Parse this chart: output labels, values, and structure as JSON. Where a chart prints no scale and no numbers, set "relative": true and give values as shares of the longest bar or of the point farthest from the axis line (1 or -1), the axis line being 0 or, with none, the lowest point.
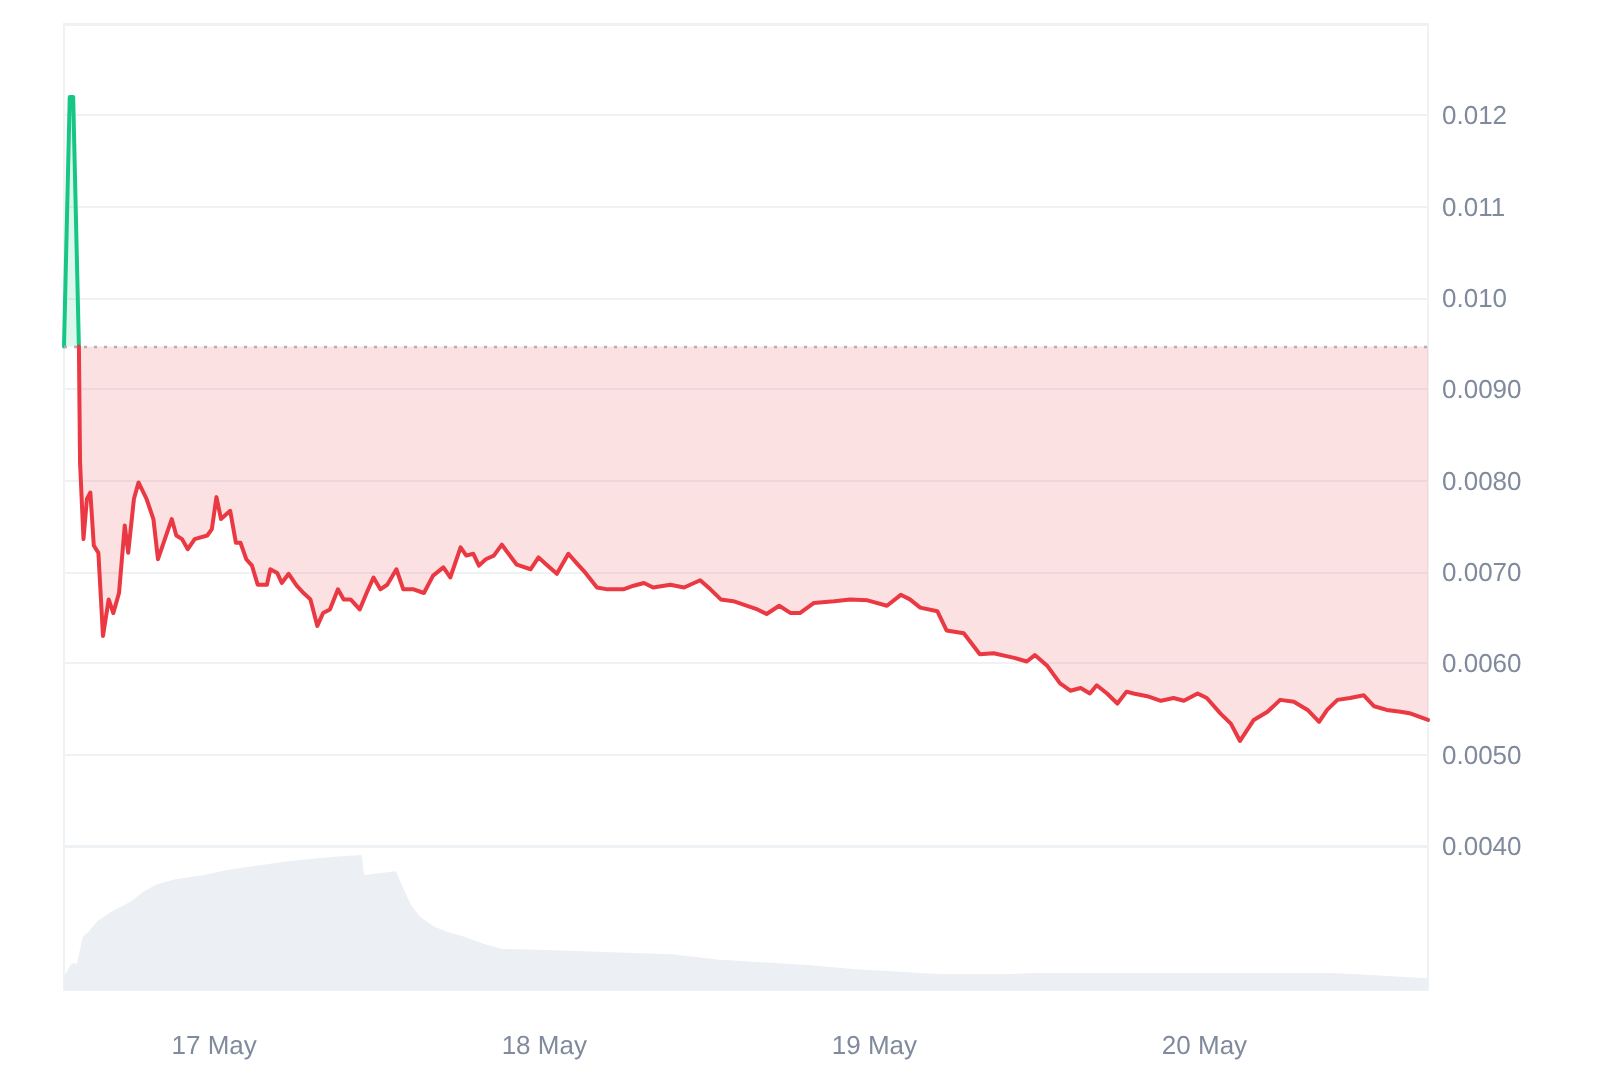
{
  "chart_data": [
    {
      "type": "line",
      "series": [
        {
          "color": "#16c784",
          "x": [
            "--05-16T13:05",
            "--05-16T13:30",
            "--05-16T13:45",
            "--05-16T14:10"
          ],
          "values": [
            0.00947,
            0.0122,
            0.0122,
            0.00947
          ],
          "lower": [
            0.00947,
            0.00947,
            0.00947,
            0.00947
          ],
          "upper": [
            0.00947,
            0.0122,
            0.0122,
            0.00947
          ]
        },
        {
          "color": "#ea3943",
          "x": [
            "--05-16T14:10",
            "--05-16T14:15",
            "--05-16T14:30",
            "--05-16T14:45",
            "--05-16T15:00",
            "--05-16T15:15",
            "--05-16T15:35",
            "--05-16T15:55",
            "--05-16T16:20",
            "--05-16T16:40",
            "--05-16T17:05",
            "--05-16T17:30",
            "--05-16T17:45",
            "--05-16T18:10",
            "--05-16T18:30",
            "--05-16T19:05",
            "--05-16T19:35",
            "--05-16T19:55",
            "--05-16T20:25",
            "--05-16T20:55",
            "--05-16T21:15",
            "--05-16T21:40",
            "--05-16T22:05",
            "--05-16T22:35",
            "--05-16T23:30",
            "--05-16T23:50",
            "--05-17T00:10",
            "--05-17T00:30",
            "--05-17T01:10",
            "--05-17T01:35",
            "--05-17T01:55",
            "--05-17T02:20",
            "--05-17T02:45",
            "--05-17T03:10",
            "--05-17T03:50",
            "--05-17T04:05",
            "--05-17T04:35",
            "--05-17T04:55",
            "--05-17T05:25",
            "--05-17T06:00",
            "--05-17T06:30",
            "--05-17T07:00",
            "--05-17T07:30",
            "--05-17T07:55",
            "--05-17T08:25",
            "--05-17T09:00",
            "--05-17T09:25",
            "--05-17T09:55",
            "--05-17T10:35",
            "--05-17T11:05",
            "--05-17T11:35",
            "--05-17T12:05",
            "--05-17T12:35",
            "--05-17T13:15",
            "--05-17T13:45",
            "--05-17T14:30",
            "--05-17T15:15",
            "--05-17T15:55",
            "--05-17T16:40",
            "--05-17T17:10",
            "--05-17T17:55",
            "--05-17T18:20",
            "--05-17T18:50",
            "--05-17T19:15",
            "--05-17T19:45",
            "--05-17T20:20",
            "--05-17T20:55",
            "--05-17T21:15",
            "--05-17T22:00",
            "--05-17T23:00",
            "--05-17T23:35",
            "--05-18T00:10",
            "--05-18T00:55",
            "--05-18T01:45",
            "--05-18T02:20",
            "--05-18T03:00",
            "--05-18T03:50",
            "--05-18T04:35",
            "--05-18T05:45",
            "--05-18T06:30",
            "--05-18T07:15",
            "--05-18T07:55",
            "--05-18T09:10",
            "--05-18T10:10",
            "--05-18T11:20",
            "--05-18T12:05",
            "--05-18T12:50",
            "--05-18T13:45",
            "--05-18T14:45",
            "--05-18T15:30",
            "--05-18T16:10",
            "--05-18T17:05",
            "--05-18T17:55",
            "--05-18T18:35",
            "--05-18T19:35",
            "--05-18T21:05",
            "--05-18T22:15",
            "--05-18T23:30",
            "--05-19T00:55",
            "--05-19T01:55",
            "--05-19T02:35",
            "--05-19T03:20",
            "--05-19T04:35",
            "--05-19T05:15",
            "--05-19T06:30",
            "--05-19T07:40",
            "--05-19T08:40",
            "--05-19T10:10",
            "--05-19T11:05",
            "--05-19T11:40",
            "--05-19T12:35",
            "--05-19T13:30",
            "--05-19T14:15",
            "--05-19T15:00",
            "--05-19T15:40",
            "--05-19T16:10",
            "--05-19T16:55",
            "--05-19T17:40",
            "--05-19T18:20",
            "--05-19T18:50",
            "--05-19T19:50",
            "--05-19T20:50",
            "--05-19T21:45",
            "--05-19T22:30",
            "--05-19T23:30",
            "--05-20T00:10",
            "--05-20T01:10",
            "--05-20T01:55",
            "--05-20T02:35",
            "--05-20T03:35",
            "--05-20T04:35",
            "--05-20T05:30",
            "--05-20T06:30",
            "--05-20T07:30",
            "--05-20T08:20",
            "--05-20T08:55",
            "--05-20T09:40",
            "--05-20T10:35",
            "--05-20T11:35",
            "--05-20T12:20",
            "--05-20T13:15",
            "--05-20T14:15",
            "--05-20T15:00",
            "--05-20T16:15"
          ],
          "values": [
            0.00947,
            0.0082,
            0.00736,
            0.0078,
            0.00787,
            0.00729,
            0.00721,
            0.0063,
            0.0067,
            0.00655,
            0.00677,
            0.00751,
            0.00721,
            0.0078,
            0.00798,
            0.0078,
            0.00758,
            0.00714,
            0.00736,
            0.00758,
            0.0074,
            0.00736,
            0.00725,
            0.00736,
            0.0074,
            0.00747,
            0.00782,
            0.00758,
            0.00767,
            0.00732,
            0.00732,
            0.00714,
            0.00707,
            0.00686,
            0.00686,
            0.00703,
            0.00699,
            0.00688,
            0.00698,
            0.00685,
            0.00677,
            0.0067,
            0.00641,
            0.00655,
            0.00659,
            0.00681,
            0.0067,
            0.0067,
            0.00659,
            0.00677,
            0.00694,
            0.00681,
            0.00686,
            0.00703,
            0.00681,
            0.00681,
            0.00677,
            0.00696,
            0.00705,
            0.00694,
            0.00727,
            0.00718,
            0.0072,
            0.00707,
            0.00714,
            0.00718,
            0.0073,
            0.00723,
            0.00708,
            0.00703,
            0.00716,
            0.00708,
            0.00698,
            0.0072,
            0.0071,
            0.00699,
            0.00683,
            0.00681,
            0.00681,
            0.00685,
            0.00688,
            0.00683,
            0.00686,
            0.00683,
            0.00691,
            0.00681,
            0.0067,
            0.00668,
            0.00663,
            0.00659,
            0.00654,
            0.00663,
            0.00655,
            0.00655,
            0.00666,
            0.00668,
            0.0067,
            0.00669,
            0.00663,
            0.00675,
            0.0067,
            0.00661,
            0.00657,
            0.00636,
            0.00633,
            0.0061,
            0.00611,
            0.00606,
            0.00602,
            0.00609,
            0.00597,
            0.00578,
            0.0057,
            0.00573,
            0.00567,
            0.00576,
            0.00567,
            0.00556,
            0.00569,
            0.00567,
            0.00564,
            0.00559,
            0.00562,
            0.00559,
            0.00567,
            0.00562,
            0.00545,
            0.00534,
            0.00515,
            0.00538,
            0.00547,
            0.0056,
            0.00558,
            0.00549,
            0.00536,
            0.00549,
            0.0056,
            0.00562,
            0.00565,
            0.00553,
            0.00549,
            0.00547,
            0.00545,
            0.00538
          ],
          "lower": [
            0.00947,
            0.0082,
            0.00736,
            0.0078,
            0.00787,
            0.00729,
            0.00721,
            0.0063,
            0.0067,
            0.00655,
            0.00677,
            0.00751,
            0.00721,
            0.0078,
            0.00798,
            0.0078,
            0.00758,
            0.00714,
            0.00736,
            0.00758,
            0.0074,
            0.00736,
            0.00725,
            0.00736,
            0.0074,
            0.00747,
            0.00782,
            0.00758,
            0.00767,
            0.00732,
            0.00732,
            0.00714,
            0.00707,
            0.00686,
            0.00686,
            0.00703,
            0.00699,
            0.00688,
            0.00698,
            0.00685,
            0.00677,
            0.0067,
            0.00641,
            0.00655,
            0.00659,
            0.00681,
            0.0067,
            0.0067,
            0.00659,
            0.00677,
            0.00694,
            0.00681,
            0.00686,
            0.00703,
            0.00681,
            0.00681,
            0.00677,
            0.00696,
            0.00705,
            0.00694,
            0.00727,
            0.00718,
            0.0072,
            0.00707,
            0.00714,
            0.00718,
            0.0073,
            0.00723,
            0.00708,
            0.00703,
            0.00716,
            0.00708,
            0.00698,
            0.0072,
            0.0071,
            0.00699,
            0.00683,
            0.00681,
            0.00681,
            0.00685,
            0.00688,
            0.00683,
            0.00686,
            0.00683,
            0.00691,
            0.00681,
            0.0067,
            0.00668,
            0.00663,
            0.00659,
            0.00654,
            0.00663,
            0.00655,
            0.00655,
            0.00666,
            0.00668,
            0.0067,
            0.00669,
            0.00663,
            0.00675,
            0.0067,
            0.00661,
            0.00657,
            0.00636,
            0.00633,
            0.0061,
            0.00611,
            0.00606,
            0.00602,
            0.00609,
            0.00597,
            0.00578,
            0.0057,
            0.00573,
            0.00567,
            0.00576,
            0.00567,
            0.00556,
            0.00569,
            0.00567,
            0.00564,
            0.00559,
            0.00562,
            0.00559,
            0.00567,
            0.00562,
            0.00545,
            0.00534,
            0.00515,
            0.00538,
            0.00547,
            0.0056,
            0.00558,
            0.00549,
            0.00536,
            0.00549,
            0.0056,
            0.00562,
            0.00565,
            0.00553,
            0.00549,
            0.00547,
            0.00545,
            0.00538
          ],
          "upper": [
            0.00947,
            0.00947,
            0.00947,
            0.00947,
            0.00947,
            0.00947,
            0.00947,
            0.00947,
            0.00947,
            0.00947,
            0.00947,
            0.00947,
            0.00947,
            0.00947,
            0.00947,
            0.00947,
            0.00947,
            0.00947,
            0.00947,
            0.00947,
            0.00947,
            0.00947,
            0.00947,
            0.00947,
            0.00947,
            0.00947,
            0.00947,
            0.00947,
            0.00947,
            0.00947,
            0.00947,
            0.00947,
            0.00947,
            0.00947,
            0.00947,
            0.00947,
            0.00947,
            0.00947,
            0.00947,
            0.00947,
            0.00947,
            0.00947,
            0.00947,
            0.00947,
            0.00947,
            0.00947,
            0.00947,
            0.00947,
            0.00947,
            0.00947,
            0.00947,
            0.00947,
            0.00947,
            0.00947,
            0.00947,
            0.00947,
            0.00947,
            0.00947,
            0.00947,
            0.00947,
            0.00947,
            0.00947,
            0.00947,
            0.00947,
            0.00947,
            0.00947,
            0.00947,
            0.00947,
            0.00947,
            0.00947,
            0.00947,
            0.00947,
            0.00947,
            0.00947,
            0.00947,
            0.00947,
            0.00947,
            0.00947,
            0.00947,
            0.00947,
            0.00947,
            0.00947,
            0.00947,
            0.00947,
            0.00947,
            0.00947,
            0.00947,
            0.00947,
            0.00947,
            0.00947,
            0.00947,
            0.00947,
            0.00947,
            0.00947,
            0.00947,
            0.00947,
            0.00947,
            0.00947,
            0.00947,
            0.00947,
            0.00947,
            0.00947,
            0.00947,
            0.00947,
            0.00947,
            0.00947,
            0.00947,
            0.00947,
            0.00947,
            0.00947,
            0.00947,
            0.00947,
            0.00947,
            0.00947,
            0.00947,
            0.00947,
            0.00947,
            0.00947,
            0.00947,
            0.00947,
            0.00947,
            0.00947,
            0.00947,
            0.00947,
            0.00947,
            0.00947,
            0.00947,
            0.00947,
            0.00947,
            0.00947,
            0.00947,
            0.00947,
            0.00947,
            0.00947,
            0.00947,
            0.00947,
            0.00947,
            0.00947,
            0.00947,
            0.00947,
            0.00947,
            0.00947,
            0.00947,
            0.00947
          ]
        }
      ],
      "xlim": [
        "--05-16T13:05",
        "--05-20T16:15"
      ],
      "ylim": [
        0.004,
        0.013
      ],
      "yticks": [
        {
          "value": 0.004,
          "label": "0.0040"
        },
        {
          "value": 0.005,
          "label": "0.0050"
        },
        {
          "value": 0.006,
          "label": "0.0060"
        },
        {
          "value": 0.007,
          "label": "0.0070"
        },
        {
          "value": 0.008,
          "label": "0.0080"
        },
        {
          "value": 0.009,
          "label": "0.0090"
        },
        {
          "value": 0.01,
          "label": "0.010"
        },
        0.011,
        0.012
      ],
      "grid": "y",
      "tick_labels": "y",
      "ref_lines": [
        {
          "axis": "y",
          "value": 0.00947,
          "color": "#b0b0b0",
          "line_style": "dotted"
        }
      ]
    },
    {
      "type": "area",
      "relative": true,
      "series": [
        {
          "color": "#eceff4",
          "x": [
            "--05-16T13:05",
            "--05-16T13:40",
            "--05-16T14:05",
            "--05-16T14:30",
            "--05-16T14:55",
            "--05-16T15:35",
            "--05-16T16:35",
            "--05-16T17:55",
            "--05-16T18:55",
            "--05-16T19:50",
            "--05-16T21:10",
            "--05-16T23:10",
            "--05-17T01:05",
            "--05-17T03:05",
            "--05-17T05:05",
            "--05-17T07:00",
            "--05-17T09:00",
            "--05-17T10:40",
            "--05-17T10:50",
            "--05-17T13:10",
            "--05-17T13:35",
            "--05-17T14:15",
            "--05-17T14:55",
            "--05-17T15:55",
            "--05-17T16:50",
            "--05-17T18:10",
            "--05-17T19:30",
            "--05-17T20:50",
            "--05-18T00:45",
            "--05-18T09:15",
            "--05-18T12:35",
            "--05-18T15:50",
            "--05-18T19:05",
            "--05-18T22:25",
            "--05-19T04:55",
            "--05-19T09:30",
            "--05-19T11:30",
            "--05-20T09:10",
            "--05-20T11:05",
            "--05-20T16:15"
          ],
          "values": [
            0.09,
            0.19,
            0.19,
            0.39,
            0.43,
            0.51,
            0.58,
            0.65,
            0.73,
            0.78,
            0.82,
            0.85,
            0.89,
            0.92,
            0.95,
            0.97,
            0.99,
            1,
            0.85,
            0.88,
            0.78,
            0.63,
            0.54,
            0.47,
            0.43,
            0.39,
            0.34,
            0.3,
            0.29,
            0.26,
            0.22,
            0.2,
            0.18,
            0.15,
            0.11,
            0.11,
            0.12,
            0.12,
            0.11,
            0.08
          ]
        }
      ],
      "xlim": [
        "--05-16T13:05",
        "--05-20T16:15"
      ],
      "xticks": [
        {
          "value": "--05-17",
          "label": "17 May"
        },
        {
          "value": "--05-18",
          "label": "18 May"
        },
        {
          "value": "--05-19",
          "label": "19 May"
        },
        {
          "value": "--05-20",
          "label": "20 May"
        }
      ],
      "tick_labels": "x"
    }
  ]
}
